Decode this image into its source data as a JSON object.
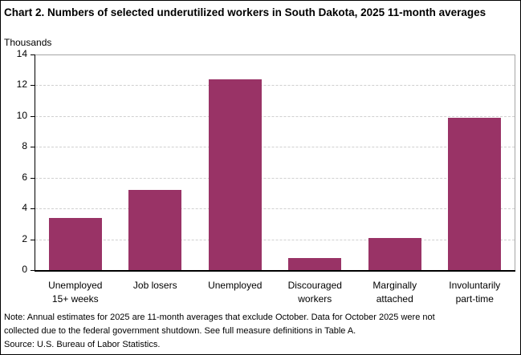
{
  "title": "Chart 2. Numbers of selected underutilized workers in South Dakota, 2025 11-month averages",
  "y_unit": "Thousands",
  "yticks": [
    "0",
    "2",
    "4",
    "6",
    "8",
    "10",
    "12",
    "14"
  ],
  "categories": [
    {
      "line1": "Unemployed",
      "line2": "15+ weeks"
    },
    {
      "line1": "Job losers",
      "line2": ""
    },
    {
      "line1": "Unemployed",
      "line2": ""
    },
    {
      "line1": "Discouraged",
      "line2": "workers"
    },
    {
      "line1": "Marginally",
      "line2": "attached"
    },
    {
      "line1": "Involuntarily",
      "line2": "part-time"
    }
  ],
  "notes": {
    "line1": "Note:  Annual estimates for 2025 are 11-month averages that exclude October. Data for October 2025 were not",
    "line2": "collected due to the federal government  shutdown. See full measure definitions in Table A.",
    "source": "Source: U.S. Bureau of Labor Statistics."
  },
  "bar_color": "#993366",
  "chart_data": {
    "type": "bar",
    "title": "Chart 2. Numbers of selected underutilized workers in South Dakota, 2025 11-month averages",
    "categories": [
      "Unemployed 15+ weeks",
      "Job losers",
      "Unemployed",
      "Discouraged workers",
      "Marginally attached",
      "Involuntarily part-time"
    ],
    "values": [
      3.4,
      5.2,
      12.4,
      0.8,
      2.1,
      9.9
    ],
    "xlabel": "",
    "ylabel": "Thousands",
    "ylim": [
      0,
      14
    ],
    "yticks": [
      0,
      2,
      4,
      6,
      8,
      10,
      12,
      14
    ],
    "grid": true,
    "legend": "none",
    "color": "#993366"
  }
}
